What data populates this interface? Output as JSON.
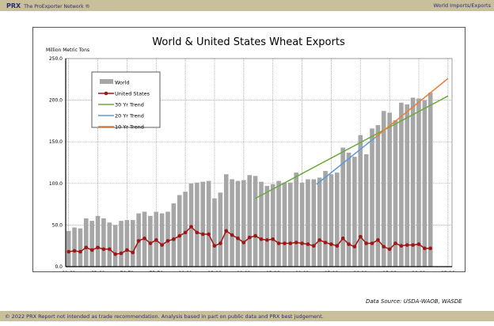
{
  "header": {
    "brand": "PRX",
    "network": "The ProExporter Network ®",
    "section": "World Imports/Exports"
  },
  "footer": {
    "text": "© 2022 PRX  Report not intended as trade recommendation. Analysis based in part on public data and PRX best judgement."
  },
  "source": "Data Source: USDA-WAOB, WASDE",
  "chart_data": {
    "type": "bar",
    "title": "World & United States Wheat Exports",
    "ylabel": "Million Metric Tons",
    "ylim": [
      0,
      250
    ],
    "yticks": [
      "0.0",
      "50.0",
      "100.0",
      "150.0",
      "200.0",
      "250.0"
    ],
    "xticks": [
      "60-61",
      "65-66",
      "70-71",
      "75-76",
      "80-81",
      "85-86",
      "90-91",
      "95-96",
      "00-01",
      "05-06",
      "10-11",
      "15-16",
      "20-21",
      "25-26"
    ],
    "grid": true,
    "legend_position": "top-left",
    "start_year": 1960,
    "series": [
      {
        "name": "World",
        "kind": "bar",
        "color": "#a6a6a6",
        "values": [
          43,
          47,
          46,
          58,
          55,
          61,
          58,
          53,
          50,
          55,
          56,
          56,
          64,
          66,
          61,
          66,
          64,
          66,
          76,
          86,
          90,
          100,
          101,
          102,
          103,
          82,
          89,
          111,
          105,
          103,
          104,
          110,
          109,
          102,
          97,
          99,
          103,
          101,
          101,
          113,
          101,
          105,
          105,
          107,
          115,
          111,
          113,
          143,
          137,
          132,
          158,
          135,
          166,
          170,
          187,
          185,
          176,
          197,
          195,
          203,
          202,
          200,
          209
        ]
      },
      {
        "name": "United States",
        "kind": "line-marker",
        "color": "#a31515",
        "values": [
          18,
          19,
          18,
          23,
          20,
          23,
          21,
          21,
          15,
          16,
          20,
          17,
          31,
          34,
          28,
          32,
          26,
          31,
          33,
          37,
          41,
          48,
          41,
          39,
          39,
          25,
          28,
          43,
          38,
          34,
          29,
          35,
          37,
          33,
          32,
          33,
          28,
          28,
          28,
          29,
          28,
          27,
          25,
          32,
          29,
          27,
          25,
          34,
          27,
          24,
          36,
          28,
          28,
          32,
          24,
          21,
          28,
          25,
          26,
          26,
          27,
          22,
          22
        ]
      },
      {
        "name": "30 Yr Trend",
        "kind": "line",
        "color": "#6aaa3a",
        "points": [
          [
            1992,
            82
          ],
          [
            2025,
            205
          ]
        ]
      },
      {
        "name": "20 Yr Trend",
        "kind": "line",
        "color": "#5b9bd5",
        "points": [
          [
            2002.5,
            99
          ],
          [
            2012.5,
            155
          ]
        ]
      },
      {
        "name": "10 Yr Trend",
        "kind": "line",
        "color": "#ed7d31",
        "points": [
          [
            2012.5,
            155
          ],
          [
            2025,
            226
          ]
        ]
      }
    ]
  }
}
